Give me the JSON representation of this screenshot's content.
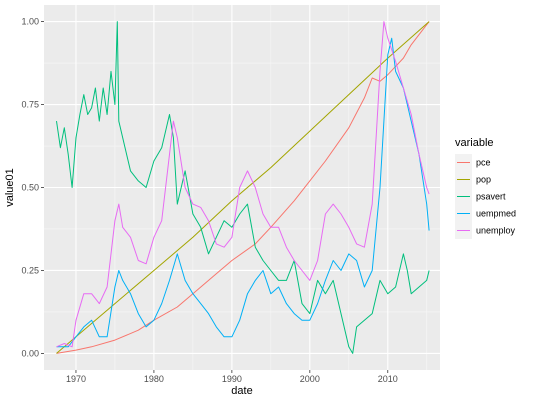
{
  "chart_data": {
    "type": "line",
    "xlabel": "date",
    "ylabel": "value01",
    "xlim": [
      1965.9,
      2016.7
    ],
    "ylim": [
      -0.05,
      1.05
    ],
    "x_ticks": [
      1970,
      1980,
      1990,
      2000,
      2010
    ],
    "y_ticks": [
      0.0,
      0.25,
      0.5,
      0.75,
      1.0
    ],
    "y_tick_labels": [
      "0.00",
      "0.25",
      "0.50",
      "0.75",
      "1.00"
    ],
    "grid": true,
    "legend": {
      "title": "variable",
      "position": "right"
    },
    "series": [
      {
        "name": "pce",
        "color": "#F8766D",
        "x": [
          1967.5,
          1970,
          1972,
          1975,
          1978,
          1980,
          1983,
          1985,
          1988,
          1990,
          1993,
          1995,
          1998,
          2000,
          2002,
          2005,
          2007,
          2008,
          2009,
          2010,
          2012,
          2013,
          2015.3
        ],
        "y": [
          0.0,
          0.01,
          0.02,
          0.04,
          0.07,
          0.1,
          0.14,
          0.18,
          0.24,
          0.28,
          0.33,
          0.38,
          0.46,
          0.52,
          0.58,
          0.68,
          0.77,
          0.83,
          0.82,
          0.84,
          0.89,
          0.93,
          1.0
        ]
      },
      {
        "name": "pop",
        "color": "#A3A500",
        "x": [
          1967.5,
          1970,
          1975,
          1980,
          1985,
          1990,
          1995,
          2000,
          2005,
          2010,
          2015.3
        ],
        "y": [
          0.0,
          0.05,
          0.15,
          0.25,
          0.35,
          0.46,
          0.56,
          0.67,
          0.78,
          0.89,
          1.0
        ]
      },
      {
        "name": "psavert",
        "color": "#00BF7D",
        "x": [
          1967.5,
          1968,
          1968.5,
          1969,
          1969.5,
          1970,
          1970.5,
          1971,
          1971.5,
          1972,
          1972.5,
          1973,
          1973.5,
          1974,
          1974.5,
          1975,
          1975.3,
          1975.5,
          1976,
          1977,
          1978,
          1979,
          1980,
          1981,
          1982,
          1982.5,
          1983,
          1984,
          1985,
          1986,
          1987,
          1988,
          1989,
          1990,
          1991,
          1992,
          1993,
          1994,
          1995,
          1996,
          1997,
          1998,
          1999,
          2000,
          2001,
          2002,
          2003,
          2004,
          2005,
          2005.5,
          2006,
          2007,
          2008,
          2009,
          2010,
          2011,
          2012,
          2012.5,
          2013,
          2014,
          2015,
          2015.3
        ],
        "y": [
          0.7,
          0.62,
          0.68,
          0.6,
          0.5,
          0.65,
          0.72,
          0.78,
          0.72,
          0.74,
          0.8,
          0.7,
          0.8,
          0.72,
          0.85,
          0.75,
          1.0,
          0.7,
          0.65,
          0.55,
          0.52,
          0.5,
          0.58,
          0.62,
          0.72,
          0.65,
          0.45,
          0.55,
          0.42,
          0.38,
          0.3,
          0.35,
          0.4,
          0.38,
          0.42,
          0.45,
          0.32,
          0.28,
          0.25,
          0.22,
          0.22,
          0.28,
          0.15,
          0.12,
          0.22,
          0.18,
          0.22,
          0.12,
          0.02,
          0.0,
          0.08,
          0.1,
          0.12,
          0.22,
          0.18,
          0.2,
          0.3,
          0.25,
          0.18,
          0.2,
          0.22,
          0.25
        ]
      },
      {
        "name": "uempmed",
        "color": "#00B0F6",
        "x": [
          1967.5,
          1969,
          1970,
          1971,
          1972,
          1973,
          1974,
          1975,
          1975.5,
          1976,
          1977,
          1978,
          1979,
          1980,
          1981,
          1982,
          1983,
          1984,
          1985,
          1986,
          1987,
          1988,
          1989,
          1990,
          1991,
          1992,
          1993,
          1994,
          1995,
          1996,
          1997,
          1998,
          1999,
          2000,
          2001,
          2002,
          2003,
          2004,
          2005,
          2006,
          2007,
          2008,
          2009,
          2009.5,
          2010,
          2010.5,
          2011,
          2012,
          2013,
          2014,
          2015,
          2015.3
        ],
        "y": [
          0.02,
          0.02,
          0.05,
          0.08,
          0.1,
          0.05,
          0.05,
          0.2,
          0.25,
          0.22,
          0.18,
          0.12,
          0.08,
          0.1,
          0.15,
          0.22,
          0.3,
          0.22,
          0.18,
          0.15,
          0.12,
          0.08,
          0.05,
          0.05,
          0.1,
          0.18,
          0.22,
          0.25,
          0.18,
          0.2,
          0.15,
          0.12,
          0.1,
          0.1,
          0.15,
          0.22,
          0.28,
          0.25,
          0.3,
          0.28,
          0.2,
          0.25,
          0.5,
          0.7,
          0.9,
          0.95,
          0.85,
          0.8,
          0.7,
          0.6,
          0.45,
          0.37
        ]
      },
      {
        "name": "unemploy",
        "color": "#E76BF3",
        "x": [
          1967.5,
          1968.5,
          1969.5,
          1970,
          1971,
          1972,
          1973,
          1974,
          1975,
          1975.5,
          1976,
          1977,
          1978,
          1979,
          1980,
          1981,
          1982,
          1982.5,
          1983,
          1984,
          1985,
          1986,
          1987,
          1988,
          1989,
          1990,
          1991,
          1992,
          1993,
          1994,
          1995,
          1996,
          1997,
          1998,
          1999,
          2000,
          2001,
          2002,
          2003,
          2004,
          2005,
          2006,
          2007,
          2008,
          2009,
          2009.5,
          2010,
          2011,
          2012,
          2013,
          2014,
          2015,
          2015.3
        ],
        "y": [
          0.02,
          0.03,
          0.02,
          0.1,
          0.18,
          0.18,
          0.15,
          0.2,
          0.4,
          0.45,
          0.38,
          0.35,
          0.28,
          0.27,
          0.35,
          0.4,
          0.6,
          0.7,
          0.65,
          0.5,
          0.45,
          0.44,
          0.4,
          0.33,
          0.32,
          0.35,
          0.5,
          0.55,
          0.5,
          0.42,
          0.38,
          0.38,
          0.32,
          0.28,
          0.25,
          0.22,
          0.28,
          0.42,
          0.45,
          0.42,
          0.38,
          0.33,
          0.32,
          0.45,
          0.85,
          1.0,
          0.95,
          0.88,
          0.8,
          0.72,
          0.6,
          0.5,
          0.48
        ]
      }
    ]
  }
}
